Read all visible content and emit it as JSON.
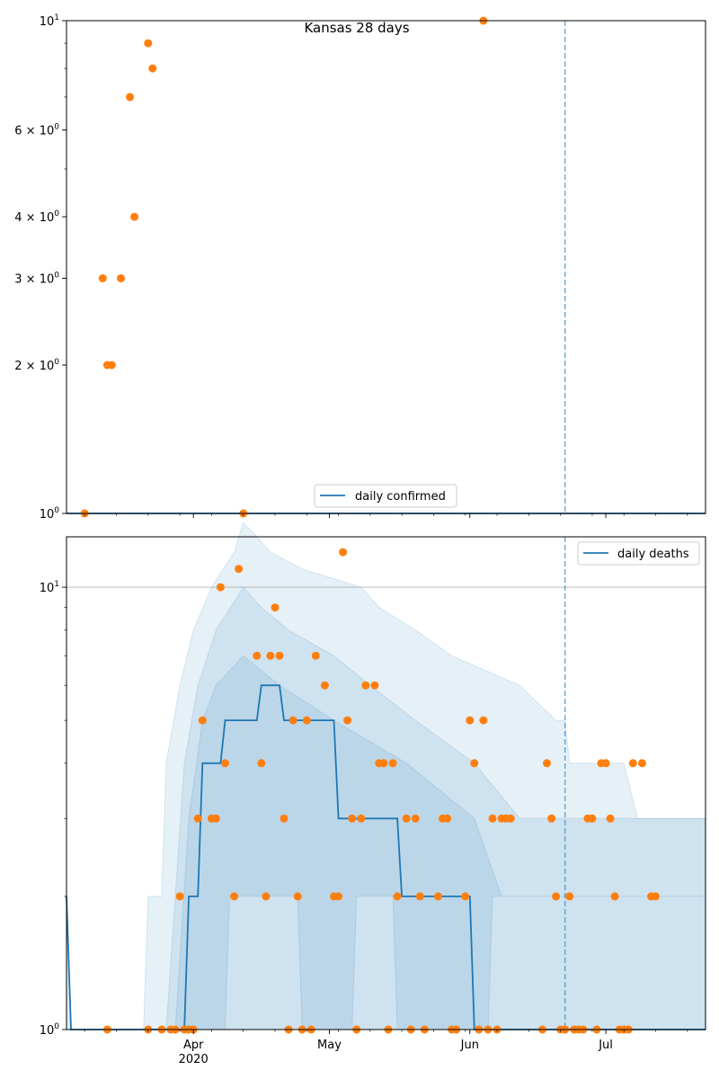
{
  "chart_data": [
    {
      "type": "scatter",
      "title": "Kansas 28 days",
      "y_scale": "log",
      "ylim": [
        1,
        10
      ],
      "y_ticks": [
        {
          "value": 1,
          "label": "10",
          "exp": "0"
        },
        {
          "value": 2,
          "label": "2 × 10",
          "exp": "0"
        },
        {
          "value": 3,
          "label": "3 × 10",
          "exp": "0"
        },
        {
          "value": 4,
          "label": "4 × 10",
          "exp": "0"
        },
        {
          "value": 6,
          "label": "6 × 10",
          "exp": "0"
        },
        {
          "value": 10,
          "label": "10",
          "exp": "1"
        }
      ],
      "xlim": [
        "2020-03-04",
        "2020-07-23"
      ],
      "vline_date": "2020-06-22",
      "legend": {
        "position": "lower-center",
        "entries": [
          "daily confirmed"
        ]
      },
      "series": [
        {
          "name": "daily confirmed",
          "kind": "line",
          "points": [
            [
              "2020-03-04",
              1
            ],
            [
              "2020-07-23",
              1
            ]
          ]
        }
      ],
      "observed": [
        [
          "2020-03-08",
          1
        ],
        [
          "2020-03-12",
          3
        ],
        [
          "2020-03-13",
          2
        ],
        [
          "2020-03-14",
          2
        ],
        [
          "2020-03-16",
          3
        ],
        [
          "2020-03-18",
          7
        ],
        [
          "2020-03-19",
          4
        ],
        [
          "2020-03-22",
          9
        ],
        [
          "2020-03-23",
          8
        ],
        [
          "2020-04-12",
          1
        ],
        [
          "2020-06-04",
          10
        ]
      ],
      "colors": {
        "line": "#1f77b4",
        "points": "#ff7f0e",
        "vline": "#1f77b4"
      }
    },
    {
      "type": "scatter",
      "y_scale": "log",
      "ylim": [
        1,
        13
      ],
      "y_ticks": [
        {
          "value": 1,
          "label": "10",
          "exp": "0"
        },
        {
          "value": 10,
          "label": "10",
          "exp": "1"
        }
      ],
      "x_ticks": [
        {
          "date": "2020-04-01",
          "label": "Apr",
          "sub": "2020"
        },
        {
          "date": "2020-05-01",
          "label": "May",
          "sub": ""
        },
        {
          "date": "2020-06-01",
          "label": "Jun",
          "sub": ""
        },
        {
          "date": "2020-07-01",
          "label": "Jul",
          "sub": ""
        }
      ],
      "xlim": [
        "2020-03-04",
        "2020-07-23"
      ],
      "vline_date": "2020-06-22",
      "hgrid_at": 10,
      "legend": {
        "position": "top-right",
        "entries": [
          "daily deaths"
        ]
      },
      "series": [
        {
          "name": "daily deaths",
          "kind": "step",
          "points": [
            [
              "2020-03-04",
              2
            ],
            [
              "2020-03-05",
              1
            ],
            [
              "2020-03-30",
              1
            ],
            [
              "2020-03-31",
              2
            ],
            [
              "2020-04-02",
              2
            ],
            [
              "2020-04-03",
              4
            ],
            [
              "2020-04-07",
              4
            ],
            [
              "2020-04-08",
              5
            ],
            [
              "2020-04-15",
              5
            ],
            [
              "2020-04-16",
              6
            ],
            [
              "2020-04-20",
              6
            ],
            [
              "2020-04-21",
              5
            ],
            [
              "2020-05-02",
              5
            ],
            [
              "2020-05-03",
              3
            ],
            [
              "2020-05-16",
              3
            ],
            [
              "2020-05-17",
              2
            ],
            [
              "2020-06-01",
              2
            ],
            [
              "2020-06-02",
              1
            ],
            [
              "2020-07-23",
              1
            ]
          ]
        }
      ],
      "bands": [
        {
          "alpha": 0.11,
          "lower": [
            [
              "2020-03-04",
              1
            ],
            [
              "2020-07-23",
              1
            ]
          ],
          "upper": [
            [
              "2020-03-04",
              1.8
            ],
            [
              "2020-03-05",
              1
            ],
            [
              "2020-03-21",
              1
            ],
            [
              "2020-03-22",
              2
            ],
            [
              "2020-03-25",
              2
            ],
            [
              "2020-03-26",
              4
            ],
            [
              "2020-03-29",
              6
            ],
            [
              "2020-04-01",
              8
            ],
            [
              "2020-04-05",
              10
            ],
            [
              "2020-04-10",
              12
            ],
            [
              "2020-04-12",
              14
            ],
            [
              "2020-04-15",
              13
            ],
            [
              "2020-04-18",
              12
            ],
            [
              "2020-04-25",
              11
            ],
            [
              "2020-05-08",
              10
            ],
            [
              "2020-05-12",
              9
            ],
            [
              "2020-05-20",
              8
            ],
            [
              "2020-05-28",
              7
            ],
            [
              "2020-06-12",
              6
            ],
            [
              "2020-06-20",
              5
            ],
            [
              "2020-06-22",
              5
            ],
            [
              "2020-06-23",
              4
            ],
            [
              "2020-07-05",
              4
            ],
            [
              "2020-07-08",
              3
            ],
            [
              "2020-07-23",
              3
            ]
          ]
        },
        {
          "alpha": 0.11,
          "lower": [
            [
              "2020-03-04",
              1
            ],
            [
              "2020-07-23",
              1
            ]
          ],
          "upper": [
            [
              "2020-03-04",
              1
            ],
            [
              "2020-03-26",
              1
            ],
            [
              "2020-03-28",
              2
            ],
            [
              "2020-03-30",
              4
            ],
            [
              "2020-04-02",
              6
            ],
            [
              "2020-04-06",
              8
            ],
            [
              "2020-04-12",
              10
            ],
            [
              "2020-04-16",
              9
            ],
            [
              "2020-04-22",
              8
            ],
            [
              "2020-05-02",
              7
            ],
            [
              "2020-05-10",
              6
            ],
            [
              "2020-05-20",
              5
            ],
            [
              "2020-06-02",
              4
            ],
            [
              "2020-06-12",
              3
            ],
            [
              "2020-07-23",
              3
            ]
          ]
        },
        {
          "alpha": 0.11,
          "lower": [
            [
              "2020-03-04",
              1
            ],
            [
              "2020-04-08",
              1
            ],
            [
              "2020-04-09",
              2
            ],
            [
              "2020-04-24",
              2
            ],
            [
              "2020-04-25",
              1
            ],
            [
              "2020-05-06",
              1
            ],
            [
              "2020-05-07",
              2
            ],
            [
              "2020-05-15",
              2
            ],
            [
              "2020-05-16",
              1
            ],
            [
              "2020-06-05",
              1
            ],
            [
              "2020-06-06",
              2
            ],
            [
              "2020-07-23",
              2
            ]
          ],
          "upper": [
            [
              "2020-03-04",
              1
            ],
            [
              "2020-03-28",
              1
            ],
            [
              "2020-03-31",
              3
            ],
            [
              "2020-04-03",
              5
            ],
            [
              "2020-04-06",
              6
            ],
            [
              "2020-04-12",
              7
            ],
            [
              "2020-04-20",
              6
            ],
            [
              "2020-05-02",
              5
            ],
            [
              "2020-05-18",
              4
            ],
            [
              "2020-06-02",
              3
            ],
            [
              "2020-06-08",
              2
            ],
            [
              "2020-07-23",
              2
            ]
          ]
        }
      ],
      "observed": [
        [
          "2020-03-13",
          1
        ],
        [
          "2020-03-22",
          1
        ],
        [
          "2020-03-25",
          1
        ],
        [
          "2020-03-27",
          1
        ],
        [
          "2020-03-28",
          1
        ],
        [
          "2020-03-29",
          2
        ],
        [
          "2020-03-30",
          1
        ],
        [
          "2020-03-31",
          1
        ],
        [
          "2020-04-01",
          1
        ],
        [
          "2020-04-02",
          3
        ],
        [
          "2020-04-03",
          5
        ],
        [
          "2020-04-05",
          3
        ],
        [
          "2020-04-06",
          3
        ],
        [
          "2020-04-07",
          10
        ],
        [
          "2020-04-08",
          4
        ],
        [
          "2020-04-10",
          2
        ],
        [
          "2020-04-11",
          11
        ],
        [
          "2020-04-15",
          7
        ],
        [
          "2020-04-16",
          4
        ],
        [
          "2020-04-17",
          2
        ],
        [
          "2020-04-18",
          7
        ],
        [
          "2020-04-19",
          9
        ],
        [
          "2020-04-20",
          7
        ],
        [
          "2020-04-21",
          3
        ],
        [
          "2020-04-22",
          1
        ],
        [
          "2020-04-23",
          5
        ],
        [
          "2020-04-24",
          2
        ],
        [
          "2020-04-25",
          1
        ],
        [
          "2020-04-26",
          5
        ],
        [
          "2020-04-27",
          1
        ],
        [
          "2020-04-28",
          7
        ],
        [
          "2020-04-30",
          6
        ],
        [
          "2020-05-02",
          2
        ],
        [
          "2020-05-03",
          2
        ],
        [
          "2020-05-04",
          12
        ],
        [
          "2020-05-05",
          5
        ],
        [
          "2020-05-06",
          3
        ],
        [
          "2020-05-07",
          1
        ],
        [
          "2020-05-08",
          3
        ],
        [
          "2020-05-09",
          6
        ],
        [
          "2020-05-11",
          6
        ],
        [
          "2020-05-12",
          4
        ],
        [
          "2020-05-13",
          4
        ],
        [
          "2020-05-14",
          1
        ],
        [
          "2020-05-15",
          4
        ],
        [
          "2020-05-16",
          2
        ],
        [
          "2020-05-18",
          3
        ],
        [
          "2020-05-19",
          1
        ],
        [
          "2020-05-20",
          3
        ],
        [
          "2020-05-21",
          2
        ],
        [
          "2020-05-22",
          1
        ],
        [
          "2020-05-25",
          2
        ],
        [
          "2020-05-26",
          3
        ],
        [
          "2020-05-27",
          3
        ],
        [
          "2020-05-28",
          1
        ],
        [
          "2020-05-29",
          1
        ],
        [
          "2020-05-31",
          2
        ],
        [
          "2020-06-01",
          5
        ],
        [
          "2020-06-02",
          4
        ],
        [
          "2020-06-03",
          1
        ],
        [
          "2020-06-04",
          5
        ],
        [
          "2020-06-05",
          1
        ],
        [
          "2020-06-06",
          3
        ],
        [
          "2020-06-07",
          1
        ],
        [
          "2020-06-08",
          3
        ],
        [
          "2020-06-09",
          3
        ],
        [
          "2020-06-10",
          3
        ],
        [
          "2020-06-17",
          1
        ],
        [
          "2020-06-18",
          4
        ],
        [
          "2020-06-19",
          3
        ],
        [
          "2020-06-20",
          2
        ],
        [
          "2020-06-21",
          1
        ],
        [
          "2020-06-22",
          1
        ],
        [
          "2020-06-23",
          2
        ],
        [
          "2020-06-24",
          1
        ],
        [
          "2020-06-25",
          1
        ],
        [
          "2020-06-26",
          1
        ],
        [
          "2020-06-27",
          3
        ],
        [
          "2020-06-28",
          3
        ],
        [
          "2020-06-29",
          1
        ],
        [
          "2020-06-30",
          4
        ],
        [
          "2020-07-01",
          4
        ],
        [
          "2020-07-02",
          3
        ],
        [
          "2020-07-03",
          2
        ],
        [
          "2020-07-04",
          1
        ],
        [
          "2020-07-05",
          1
        ],
        [
          "2020-07-06",
          1
        ],
        [
          "2020-07-07",
          4
        ],
        [
          "2020-07-09",
          4
        ],
        [
          "2020-07-11",
          2
        ],
        [
          "2020-07-12",
          2
        ]
      ],
      "colors": {
        "line": "#1f77b4",
        "points": "#ff7f0e",
        "vline": "#1f77b4",
        "band": "#1f77b4",
        "grid": "#b0b0b0"
      }
    }
  ]
}
